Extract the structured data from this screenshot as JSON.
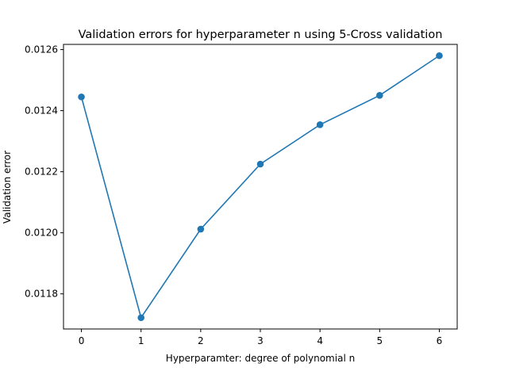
{
  "chart_data": {
    "type": "line",
    "title": "Validation errors for hyperparameter n using 5-Cross validation",
    "xlabel": "Hyperparamter: degree of polynomial n",
    "ylabel": "Validation error",
    "x": [
      0,
      1,
      2,
      3,
      4,
      5,
      6
    ],
    "series": [
      {
        "values": [
          0.012445,
          0.011722,
          0.012012,
          0.012225,
          0.012354,
          0.01245,
          0.01258
        ],
        "color": "#1f77b4",
        "marker": "circle"
      }
    ],
    "xlim": [
      -0.3,
      6.3
    ],
    "ylim": [
      0.011685,
      0.012617
    ],
    "xticks": [
      0,
      1,
      2,
      3,
      4,
      5,
      6
    ],
    "xtick_labels": [
      "0",
      "1",
      "2",
      "3",
      "4",
      "5",
      "6"
    ],
    "yticks": [
      0.0118,
      0.012,
      0.0122,
      0.0124,
      0.0126
    ],
    "ytick_labels": [
      "0.0118",
      "0.0120",
      "0.0122",
      "0.0124",
      "0.0126"
    ],
    "grid": false,
    "legend": "none"
  }
}
